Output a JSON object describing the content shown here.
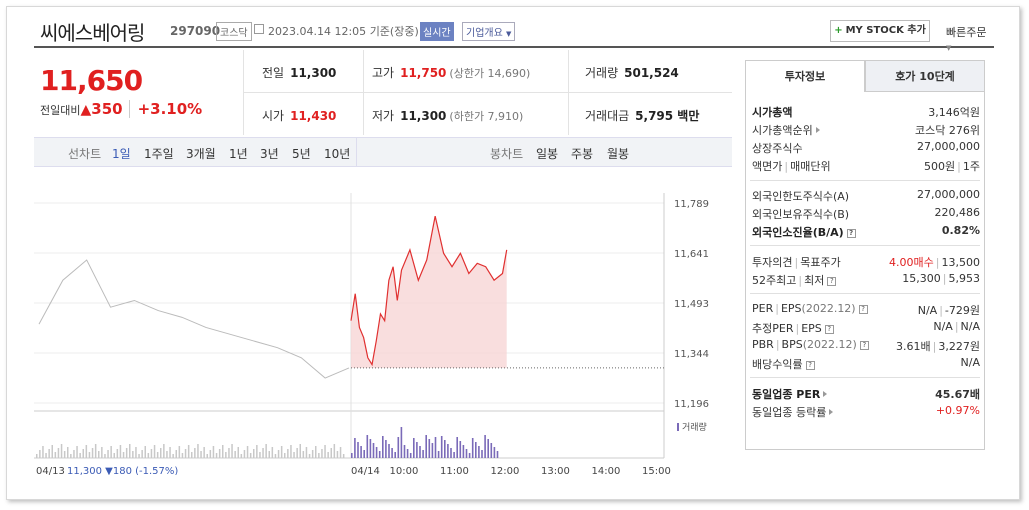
{
  "header": {
    "company": "씨에스베어링",
    "code": "297090",
    "market": "코스닥",
    "datetime": "2023.04.14 12:05",
    "basis": "기준(장중)",
    "realtime": "실시간",
    "corp_info": "기업개요",
    "mystock_label": "MY STOCK 추가",
    "quick_order": "빠른주문"
  },
  "price": {
    "current": "11,650",
    "prev_label": "전일대비",
    "change": "350",
    "change_pct": "+3.10%"
  },
  "stats": {
    "prev_close_label": "전일",
    "prev_close": "11,300",
    "high_label": "고가",
    "high": "11,750",
    "high_sub": "(상한가 14,690)",
    "volume_label": "거래량",
    "volume": "501,524",
    "open_label": "시가",
    "open": "11,430",
    "low_label": "저가",
    "low": "11,300",
    "low_sub": "(하한가 7,910)",
    "amount_label": "거래대금",
    "amount": "5,795 백만"
  },
  "chart_tabs": {
    "line_label": "선차트",
    "line_items": [
      "1일",
      "1주일",
      "3개월",
      "1년",
      "3년",
      "5년",
      "10년"
    ],
    "candle_label": "봉차트",
    "candle_items": [
      "일봉",
      "주봉",
      "월봉"
    ]
  },
  "chart_data": {
    "type": "line",
    "title": "",
    "ylim": [
      11196,
      11789
    ],
    "y_ticks": [
      "11,789",
      "11,641",
      "11,493",
      "11,344",
      "11,196"
    ],
    "x_ticks": [
      "04/13",
      "04/14",
      "10:00",
      "11:00",
      "12:00",
      "13:00",
      "14:00",
      "15:00"
    ],
    "volume_label": "거래량",
    "prev_day_summary": {
      "date": "04/13",
      "close": "11,300",
      "change": "▼180",
      "pct": "(-1.57%)"
    },
    "series": [
      {
        "x": [
          "04/13 09:00",
          "04/13 09:30",
          "04/13 10:00",
          "04/13 10:30",
          "04/13 11:00",
          "04/13 11:30",
          "04/13 12:00",
          "04/13 12:30",
          "04/13 13:00",
          "04/13 13:30",
          "04/13 14:00",
          "04/13 14:30",
          "04/13 15:00",
          "04/13 15:20"
        ],
        "values": [
          11430,
          11560,
          11620,
          11480,
          11500,
          11470,
          11450,
          11420,
          11400,
          11380,
          11360,
          11330,
          11270,
          11300
        ],
        "color": "#bbbbbb"
      },
      {
        "x": [
          "09:00",
          "09:05",
          "09:10",
          "09:15",
          "09:20",
          "09:25",
          "09:30",
          "09:35",
          "09:40",
          "09:45",
          "09:50",
          "09:55",
          "10:00",
          "10:10",
          "10:20",
          "10:30",
          "10:40",
          "10:50",
          "11:00",
          "11:10",
          "11:20",
          "11:30",
          "11:40",
          "11:50",
          "12:00",
          "12:05"
        ],
        "values": [
          11440,
          11520,
          11420,
          11390,
          11330,
          11310,
          11380,
          11460,
          11440,
          11560,
          11600,
          11500,
          11590,
          11650,
          11560,
          11620,
          11750,
          11640,
          11600,
          11640,
          11580,
          11610,
          11600,
          11560,
          11580,
          11650
        ],
        "color": "#e03030"
      }
    ],
    "baseline": 11300
  },
  "right_panel": {
    "tab1": "투자정보",
    "tab2": "호가 10단계",
    "market_cap_label": "시가총액",
    "market_cap": "3,146억원",
    "rank_label": "시가총액순위",
    "rank": "코스닥 276위",
    "shares_label": "상장주식수",
    "shares": "27,000,000",
    "par_label": "액면가",
    "unit_label": "매매단위",
    "par_val": "500원",
    "unit_val": "1주",
    "foreign_limit_label": "외국인한도주식수(A)",
    "foreign_limit": "27,000,000",
    "foreign_hold_label": "외국인보유주식수(B)",
    "foreign_hold": "220,486",
    "foreign_ratio_label": "외국인소진율(B/A)",
    "foreign_ratio": "0.82%",
    "opinion_label": "투자의견",
    "target_label": "목표주가",
    "opinion": "4.00매수",
    "target": "13,500",
    "w52_label": "52주최고",
    "w52_low_label": "최저",
    "w52_high": "15,300",
    "w52_low": "5,953",
    "per_label": "PER",
    "eps_label": "EPS",
    "eps_period": "(2022.12)",
    "per": "N/A",
    "eps": "-729원",
    "est_per_label": "추정PER",
    "est_eps_label": "EPS",
    "est_per": "N/A",
    "est_eps": "N/A",
    "pbr_label": "PBR",
    "bps_label": "BPS",
    "bps_period": "(2022.12)",
    "pbr": "3.61배",
    "bps": "3,227원",
    "div_label": "배당수익률",
    "div": "N/A",
    "ind_per_label": "동일업종 PER",
    "ind_per": "45.67배",
    "ind_chg_label": "동일업종 등락률",
    "ind_chg": "+0.97%"
  }
}
